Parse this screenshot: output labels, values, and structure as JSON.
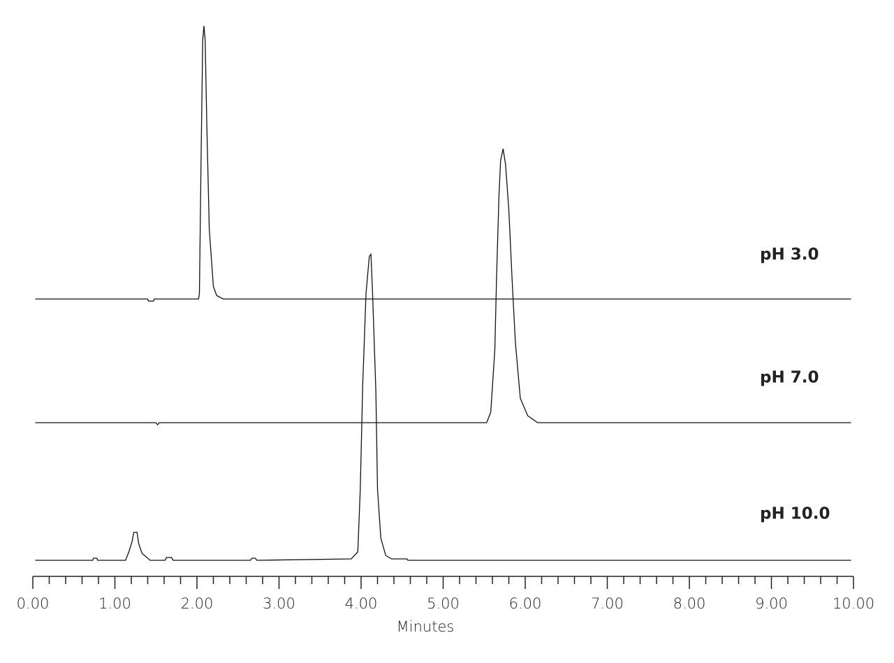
{
  "chart_data": {
    "type": "line",
    "xlabel": "Minutes",
    "xlim": [
      0,
      10
    ],
    "xticks": [
      {
        "value": 0,
        "label": "0.00"
      },
      {
        "value": 1,
        "label": "1.00"
      },
      {
        "value": 2,
        "label": "2.00"
      },
      {
        "value": 3,
        "label": "3.00"
      },
      {
        "value": 4,
        "label": "4.00"
      },
      {
        "value": 5,
        "label": "5.00"
      },
      {
        "value": 6,
        "label": "6.00"
      },
      {
        "value": 7,
        "label": "7.00"
      },
      {
        "value": 8,
        "label": "8.00"
      },
      {
        "value": 9,
        "label": "9.00"
      },
      {
        "value": 10,
        "label": "10.00"
      }
    ],
    "xminor_ticks": [
      0.2,
      0.4,
      0.6,
      0.8,
      1.2,
      1.4,
      1.6,
      1.8,
      2.2,
      2.4,
      2.6,
      2.8,
      3.2,
      3.4,
      3.6,
      3.8,
      4.2,
      4.4,
      4.6,
      4.8,
      5.2,
      5.4,
      5.6,
      5.8,
      6.2,
      6.4,
      6.6,
      6.8,
      7.2,
      7.4,
      7.6,
      7.8,
      8.2,
      8.4,
      8.6,
      8.8,
      9.2,
      9.4,
      9.6,
      9.8
    ],
    "series": [
      {
        "name": "pH 3.0",
        "color": "#111111",
        "x": [
          0.03,
          1.4,
          1.41,
          1.47,
          1.48,
          2.02,
          2.03,
          2.05,
          2.07,
          2.085,
          2.1,
          2.12,
          2.15,
          2.2,
          2.24,
          2.32,
          9.97
        ],
        "values": [
          0,
          0,
          -3,
          -3,
          0,
          0,
          8,
          200,
          370,
          391,
          370,
          250,
          100,
          18,
          5,
          0,
          0
        ]
      },
      {
        "name": "pH 7.0",
        "color": "#111111",
        "x": [
          0.03,
          1.5,
          1.52,
          1.54,
          5.53,
          5.58,
          5.63,
          5.65,
          5.68,
          5.7,
          5.73,
          5.76,
          5.8,
          5.84,
          5.88,
          5.94,
          6.03,
          6.15,
          9.97
        ],
        "values": [
          0,
          0,
          -3,
          0,
          0,
          15,
          105,
          205,
          325,
          375,
          392,
          370,
          305,
          205,
          115,
          35,
          10,
          0,
          0
        ]
      },
      {
        "name": "pH 10.0",
        "color": "#111111",
        "x": [
          0.03,
          0.73,
          0.74,
          0.78,
          0.79,
          1.13,
          1.17,
          1.21,
          1.23,
          1.27,
          1.29,
          1.33,
          1.39,
          1.43,
          1.61,
          1.63,
          1.69,
          1.71,
          2.65,
          2.67,
          2.71,
          2.73,
          3.88,
          3.96,
          3.99,
          4.02,
          4.06,
          4.1,
          4.12,
          4.14,
          4.18,
          4.2,
          4.24,
          4.3,
          4.37,
          4.56,
          4.57,
          9.97
        ],
        "values": [
          0,
          0,
          3,
          3,
          0,
          0,
          12,
          27,
          40,
          40,
          24,
          10,
          4,
          0,
          0,
          4,
          4,
          0,
          0,
          3,
          3,
          0,
          2,
          12,
          102,
          252,
          382,
          435,
          438,
          382,
          242,
          102,
          32,
          7,
          2,
          2,
          0,
          0
        ]
      }
    ]
  }
}
